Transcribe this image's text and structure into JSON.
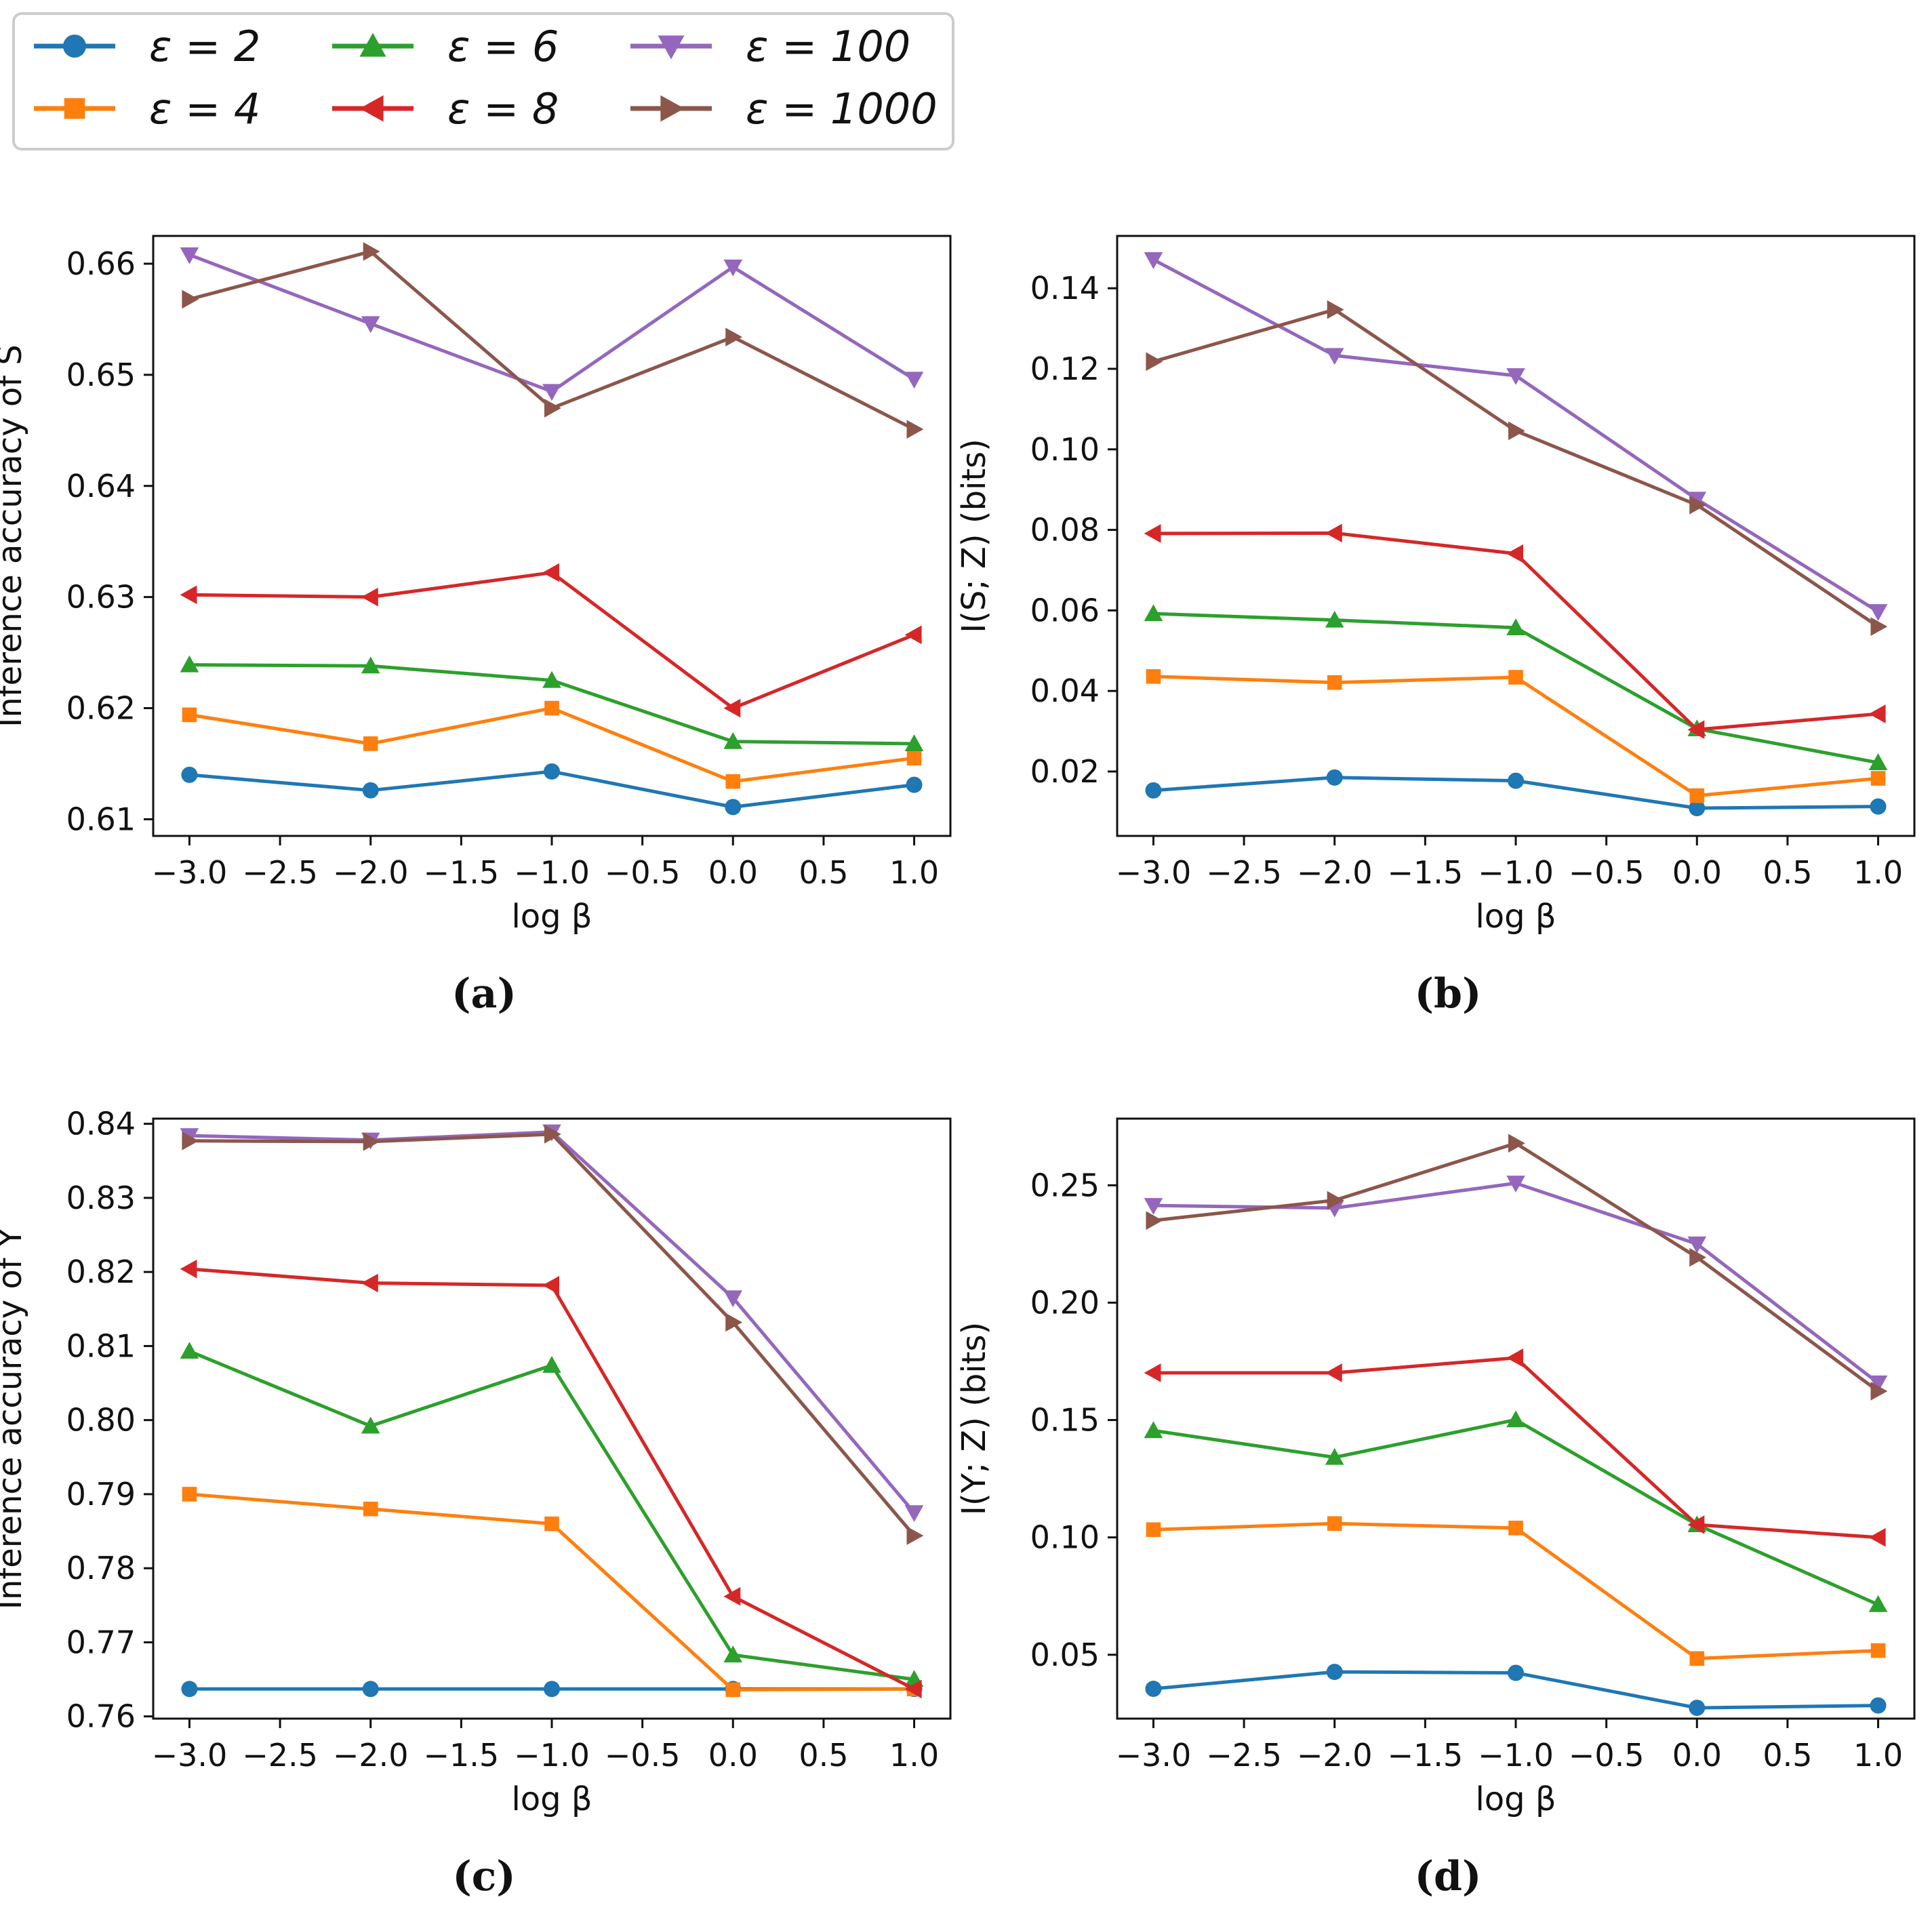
{
  "legend": {
    "entries": [
      {
        "label": "ε = 2",
        "color": "#1f77b4",
        "marker": "circle"
      },
      {
        "label": "ε = 4",
        "color": "#ff7f0e",
        "marker": "square"
      },
      {
        "label": "ε = 6",
        "color": "#2ca02c",
        "marker": "triangle-up"
      },
      {
        "label": "ε = 8",
        "color": "#d62728",
        "marker": "triangle-left"
      },
      {
        "label": "ε = 100",
        "color": "#9467bd",
        "marker": "triangle-down"
      },
      {
        "label": "ε = 1000",
        "color": "#8c564b",
        "marker": "triangle-right"
      }
    ]
  },
  "chart_data": [
    {
      "id": "a",
      "type": "line",
      "caption": "(a)",
      "xlabel": "log β",
      "ylabel": "Inference accuracy of S",
      "x": [
        -3.0,
        -2.0,
        -1.0,
        0.0,
        1.0
      ],
      "xlim": [
        -3.2,
        1.2
      ],
      "ylim": [
        0.6085,
        0.6625
      ],
      "xticks": [
        -3.0,
        -2.5,
        -2.0,
        -1.5,
        -1.0,
        -0.5,
        0.0,
        0.5,
        1.0
      ],
      "xtick_labels": [
        "−3.0",
        "−2.5",
        "−2.0",
        "−1.5",
        "−1.0",
        "−0.5",
        "0.0",
        "0.5",
        "1.0"
      ],
      "yticks": [
        0.61,
        0.62,
        0.63,
        0.64,
        0.65,
        0.66
      ],
      "ytick_labels": [
        "0.61",
        "0.62",
        "0.63",
        "0.64",
        "0.65",
        "0.66"
      ],
      "series": [
        {
          "name": "ε = 2",
          "values": [
            0.614,
            0.6126,
            0.6143,
            0.6111,
            0.6131
          ]
        },
        {
          "name": "ε = 4",
          "values": [
            0.6194,
            0.6168,
            0.62,
            0.6134,
            0.6155
          ]
        },
        {
          "name": "ε = 6",
          "values": [
            0.6239,
            0.6238,
            0.6225,
            0.617,
            0.6168
          ]
        },
        {
          "name": "ε = 8",
          "values": [
            0.6302,
            0.63,
            0.6322,
            0.62,
            0.6266
          ]
        },
        {
          "name": "ε = 100",
          "values": [
            0.6608,
            0.6546,
            0.6485,
            0.6597,
            0.6496
          ]
        },
        {
          "name": "ε = 1000",
          "values": [
            0.6568,
            0.6611,
            0.647,
            0.6534,
            0.6451
          ]
        }
      ]
    },
    {
      "id": "b",
      "type": "line",
      "caption": "(b)",
      "xlabel": "log β",
      "ylabel": "I(S; Z) (bits)",
      "x": [
        -3.0,
        -2.0,
        -1.0,
        0.0,
        1.0
      ],
      "xlim": [
        -3.2,
        1.2
      ],
      "ylim": [
        0.004,
        0.153
      ],
      "xticks": [
        -3.0,
        -2.5,
        -2.0,
        -1.5,
        -1.0,
        -0.5,
        0.0,
        0.5,
        1.0
      ],
      "xtick_labels": [
        "−3.0",
        "−2.5",
        "−2.0",
        "−1.5",
        "−1.0",
        "−0.5",
        "0.0",
        "0.5",
        "1.0"
      ],
      "yticks": [
        0.02,
        0.04,
        0.06,
        0.08,
        0.1,
        0.12,
        0.14
      ],
      "ytick_labels": [
        "0.02",
        "0.04",
        "0.06",
        "0.08",
        "0.10",
        "0.12",
        "0.14"
      ],
      "series": [
        {
          "name": "ε = 2",
          "values": [
            0.0153,
            0.0185,
            0.0177,
            0.0109,
            0.0113
          ]
        },
        {
          "name": "ε = 4",
          "values": [
            0.0436,
            0.0421,
            0.0434,
            0.014,
            0.0183
          ]
        },
        {
          "name": "ε = 6",
          "values": [
            0.0592,
            0.0576,
            0.0557,
            0.0306,
            0.0222
          ]
        },
        {
          "name": "ε = 8",
          "values": [
            0.0791,
            0.0792,
            0.0741,
            0.0304,
            0.0343
          ]
        },
        {
          "name": "ε = 100",
          "values": [
            0.1471,
            0.1233,
            0.1183,
            0.0876,
            0.0597
          ]
        },
        {
          "name": "ε = 1000",
          "values": [
            0.1218,
            0.1347,
            0.1046,
            0.0862,
            0.056
          ]
        }
      ]
    },
    {
      "id": "c",
      "type": "line",
      "caption": "(c)",
      "xlabel": "log β",
      "ylabel": "Inference accuracy of Y",
      "x": [
        -3.0,
        -2.0,
        -1.0,
        0.0,
        1.0
      ],
      "xlim": [
        -3.2,
        1.2
      ],
      "ylim": [
        0.7597,
        0.8407
      ],
      "xticks": [
        -3.0,
        -2.5,
        -2.0,
        -1.5,
        -1.0,
        -0.5,
        0.0,
        0.5,
        1.0
      ],
      "xtick_labels": [
        "−3.0",
        "−2.5",
        "−2.0",
        "−1.5",
        "−1.0",
        "−0.5",
        "0.0",
        "0.5",
        "1.0"
      ],
      "yticks": [
        0.76,
        0.77,
        0.78,
        0.79,
        0.8,
        0.81,
        0.82,
        0.83,
        0.84
      ],
      "ytick_labels": [
        "0.76",
        "0.77",
        "0.78",
        "0.79",
        "0.80",
        "0.81",
        "0.82",
        "0.83",
        "0.84"
      ],
      "series": [
        {
          "name": "ε = 2",
          "values": [
            0.7637,
            0.7637,
            0.7637,
            0.7637,
            0.7637
          ]
        },
        {
          "name": "ε = 4",
          "values": [
            0.79,
            0.788,
            0.786,
            0.7636,
            0.7637
          ]
        },
        {
          "name": "ε = 6",
          "values": [
            0.8093,
            0.7992,
            0.8074,
            0.7683,
            0.765
          ]
        },
        {
          "name": "ε = 8",
          "values": [
            0.8204,
            0.8185,
            0.8182,
            0.7762,
            0.7637
          ]
        },
        {
          "name": "ε = 100",
          "values": [
            0.8384,
            0.8378,
            0.8389,
            0.8165,
            0.7875
          ]
        },
        {
          "name": "ε = 1000",
          "values": [
            0.8377,
            0.8376,
            0.8386,
            0.8132,
            0.7844
          ]
        }
      ]
    },
    {
      "id": "d",
      "type": "line",
      "caption": "(d)",
      "xlabel": "log β",
      "ylabel": "I(Y; Z) (bits)",
      "x": [
        -3.0,
        -2.0,
        -1.0,
        0.0,
        1.0
      ],
      "xlim": [
        -3.2,
        1.2
      ],
      "ylim": [
        0.0228,
        0.2784
      ],
      "xticks": [
        -3.0,
        -2.5,
        -2.0,
        -1.5,
        -1.0,
        -0.5,
        0.0,
        0.5,
        1.0
      ],
      "xtick_labels": [
        "−3.0",
        "−2.5",
        "−2.0",
        "−1.5",
        "−1.0",
        "−0.5",
        "0.0",
        "0.5",
        "1.0"
      ],
      "yticks": [
        0.05,
        0.1,
        0.15,
        0.2,
        0.25
      ],
      "ytick_labels": [
        "0.05",
        "0.10",
        "0.15",
        "0.20",
        "0.25"
      ],
      "series": [
        {
          "name": "ε = 2",
          "values": [
            0.0355,
            0.0427,
            0.0423,
            0.0274,
            0.0284
          ]
        },
        {
          "name": "ε = 4",
          "values": [
            0.1033,
            0.1059,
            0.104,
            0.0484,
            0.0518
          ]
        },
        {
          "name": "ε = 6",
          "values": [
            0.1455,
            0.1341,
            0.1501,
            0.1054,
            0.0714
          ]
        },
        {
          "name": "ε = 8",
          "values": [
            0.1701,
            0.1701,
            0.1765,
            0.1054,
            0.1
          ]
        },
        {
          "name": "ε = 100",
          "values": [
            0.2414,
            0.2403,
            0.2509,
            0.225,
            0.1658
          ]
        },
        {
          "name": "ε = 1000",
          "values": [
            0.235,
            0.2436,
            0.2679,
            0.2193,
            0.1623
          ]
        }
      ]
    }
  ]
}
